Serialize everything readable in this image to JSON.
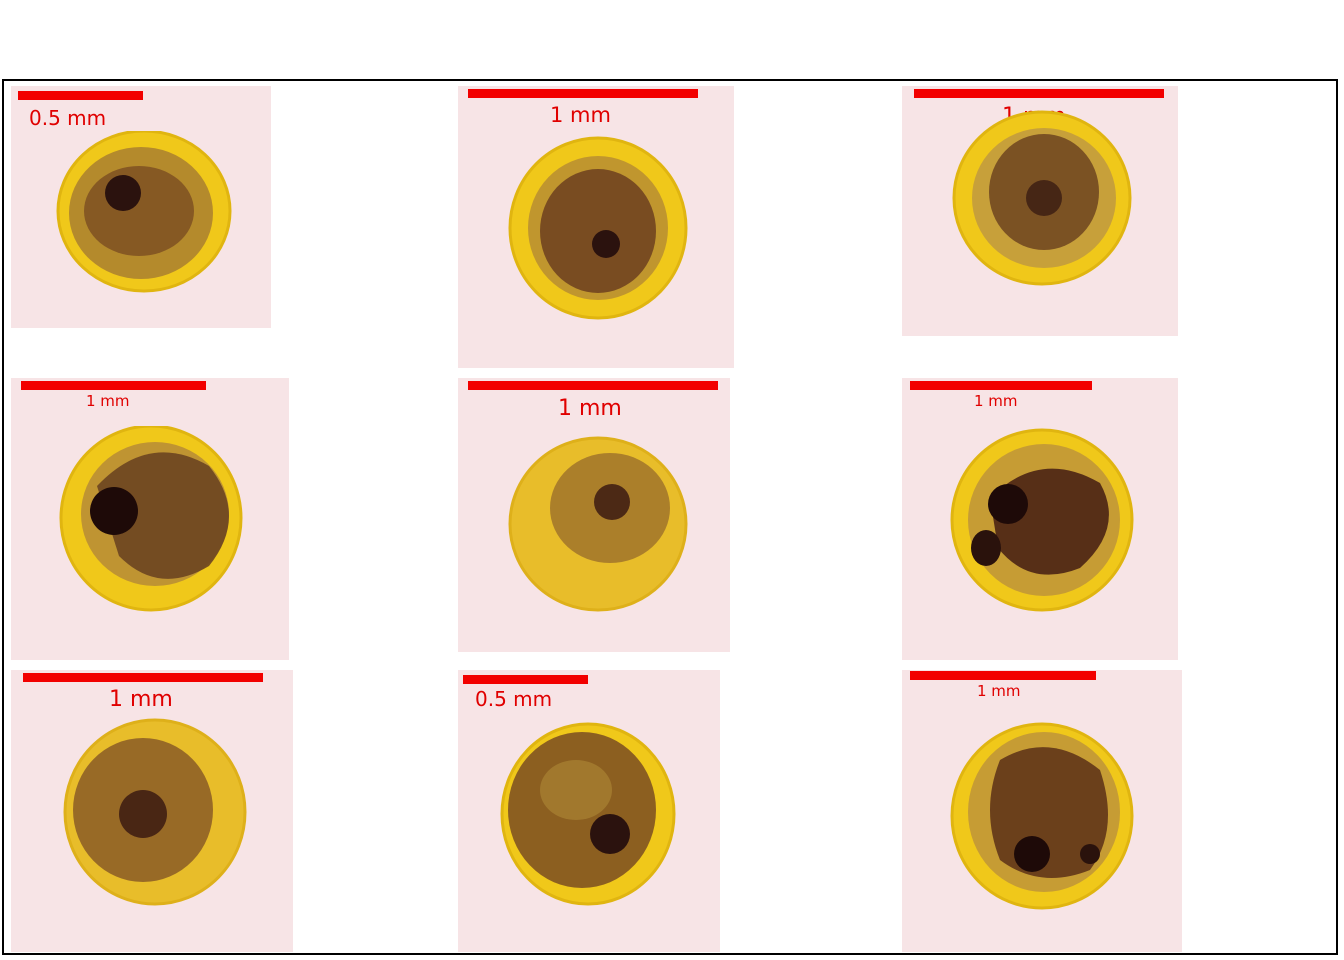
{
  "colors": {
    "background": "#f7e4e6",
    "scale_bar": "#f20000",
    "chorion": "#f0c81a",
    "yolk": "#a97a24",
    "embryo_dark": "#3b1a12"
  },
  "panels": [
    {
      "label": "0.5 mm"
    },
    {
      "label": "1 mm"
    },
    {
      "label": "1 mm"
    },
    {
      "label": "1 mm"
    },
    {
      "label": "1 mm"
    },
    {
      "label": "1 mm"
    },
    {
      "label": "1 mm"
    },
    {
      "label": "0.5 mm"
    },
    {
      "label": "1 mm"
    }
  ]
}
